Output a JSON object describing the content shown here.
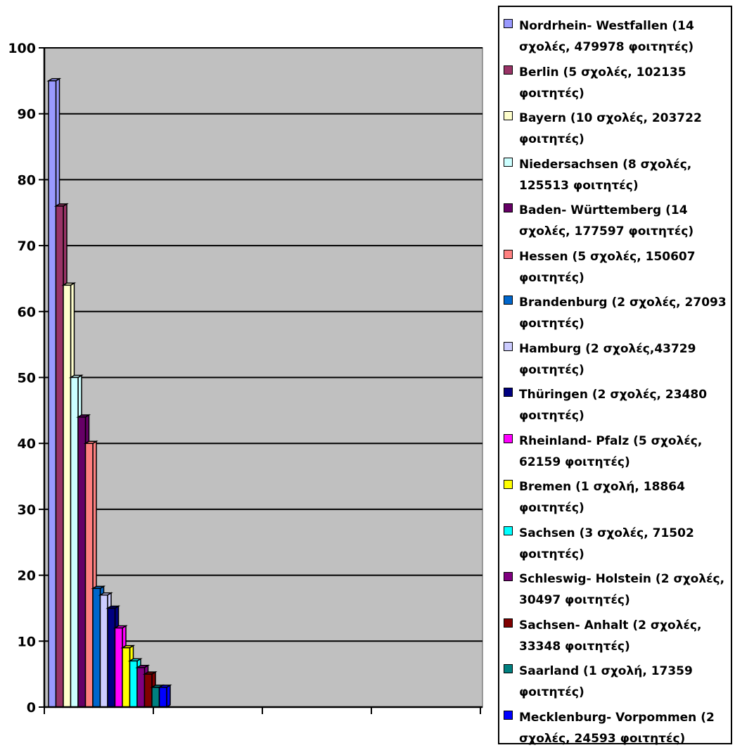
{
  "chart_data": {
    "type": "bar",
    "ylim": [
      0,
      100
    ],
    "yticks": [
      0,
      10,
      20,
      30,
      40,
      50,
      60,
      70,
      80,
      90,
      100
    ],
    "grid": true,
    "legend_position": "right",
    "plot_background": "#c0c0c0",
    "series": [
      {
        "name": "Nordrhein- Westfallen (14 σχολές, 479978 φοιτητές)",
        "value": 95,
        "color": "#9999ff"
      },
      {
        "name": "Berlin (5 σχολές, 102135 φοιτητές)",
        "value": 76,
        "color": "#993366"
      },
      {
        "name": "Bayern (10 σχολές, 203722 φοιτητές)",
        "value": 64,
        "color": "#ffffcc"
      },
      {
        "name": "Niedersachsen (8 σχολές, 125513 φοιτητές)",
        "value": 50,
        "color": "#ccffff"
      },
      {
        "name": "Baden- Württemberg (14 σχολές, 177597 φοιτητές)",
        "value": 44,
        "color": "#660066"
      },
      {
        "name": "Hessen (5 σχολές, 150607 φοιτητές)",
        "value": 40,
        "color": "#ff8080"
      },
      {
        "name": "Brandenburg (2 σχολές, 27093 φοιτητές)",
        "value": 18,
        "color": "#0066cc"
      },
      {
        "name": "Hamburg (2 σχολές,43729 φοιτητές)",
        "value": 17,
        "color": "#ccccff"
      },
      {
        "name": "Thüringen (2 σχολές, 23480 φοιτητές)",
        "value": 15,
        "color": "#000080"
      },
      {
        "name": "Rheinland- Pfalz (5 σχολές, 62159 φοιτητές)",
        "value": 12,
        "color": "#ff00ff"
      },
      {
        "name": "Bremen (1 σχολή, 18864 φοιτητές)",
        "value": 9,
        "color": "#ffff00"
      },
      {
        "name": "Sachsen (3 σχολές, 71502 φοιτητές)",
        "value": 7,
        "color": "#00ffff"
      },
      {
        "name": "Schleswig- Holstein (2 σχολές, 30497 φοιτητές)",
        "value": 6,
        "color": "#800080"
      },
      {
        "name": "Sachsen- Anhalt (2 σχολές, 33348 φοιτητές)",
        "value": 5,
        "color": "#800000"
      },
      {
        "name": "Saarland (1 σχολή, 17359 φοιτητές)",
        "value": 3,
        "color": "#008080"
      },
      {
        "name": "Mecklenburg- Vorpommen (2 σχολές, 24593 φοιτητές)",
        "value": 3,
        "color": "#0000ff"
      }
    ]
  }
}
